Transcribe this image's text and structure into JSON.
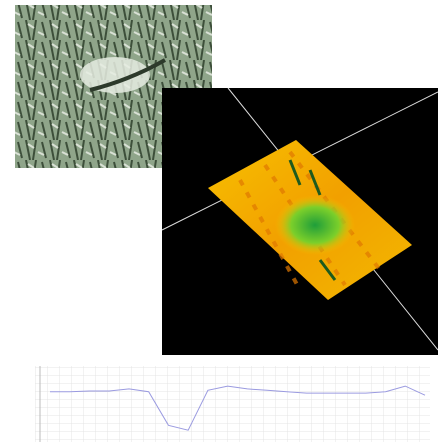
{
  "chart_data": {
    "type": "line",
    "color": "#9a9ae0",
    "ylim": [
      0,
      1
    ],
    "values": [
      0.69,
      0.69,
      0.7,
      0.7,
      0.73,
      0.69,
      0.21,
      0.14,
      0.71,
      0.77,
      0.73,
      0.71,
      0.69,
      0.67,
      0.67,
      0.67,
      0.67,
      0.69,
      0.77,
      0.64
    ]
  }
}
